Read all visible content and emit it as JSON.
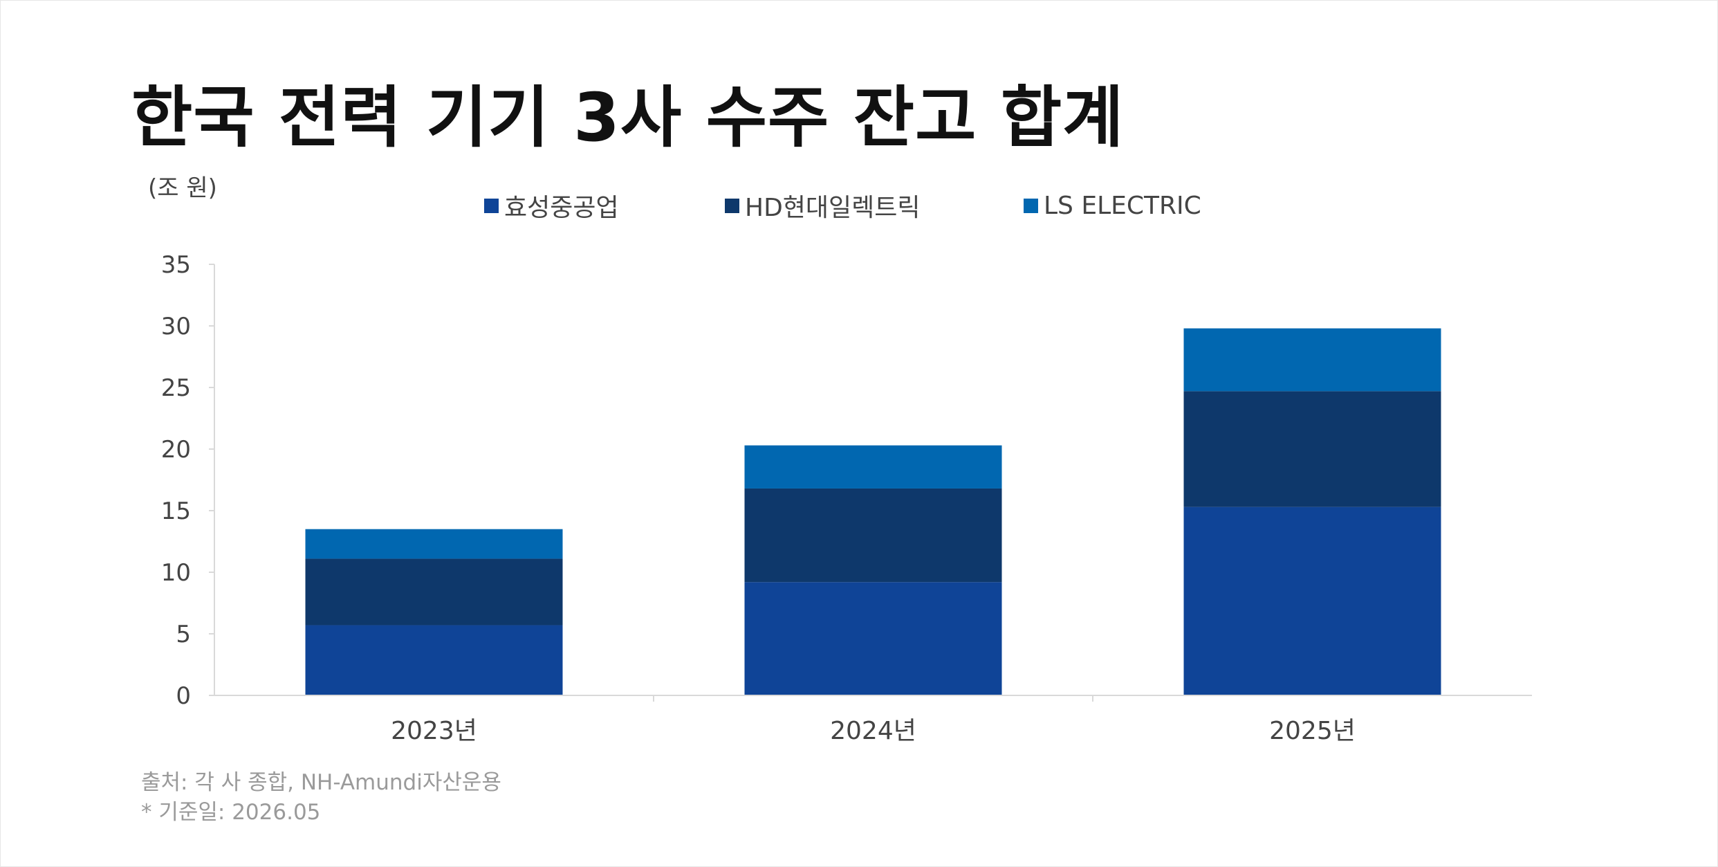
{
  "title": "한국 전력 기기 3사 수주 잔고 합계",
  "unit_label": "(조 원)",
  "footer": {
    "source": "출처: 각 사 종합, NH-Amundi자산운용",
    "note": "* 기준일:  2026.05"
  },
  "chart_data": {
    "type": "bar",
    "stacked": true,
    "categories": [
      "2023년",
      "2024년",
      "2025년"
    ],
    "series": [
      {
        "name": "효성중공업",
        "values": [
          5.7,
          9.2,
          15.3
        ],
        "color": "#0f4497"
      },
      {
        "name": "HD현대일렉트릭",
        "values": [
          5.4,
          7.6,
          9.4
        ],
        "color": "#0e386b"
      },
      {
        "name": "LS ELECTRIC",
        "values": [
          2.4,
          3.5,
          5.1
        ],
        "color": "#0167b0"
      }
    ],
    "ylim": [
      0,
      35
    ],
    "yticks": [
      "0",
      "5",
      "10",
      "15",
      "20",
      "25",
      "30",
      "35"
    ],
    "grid": false,
    "legend_position": "top"
  }
}
